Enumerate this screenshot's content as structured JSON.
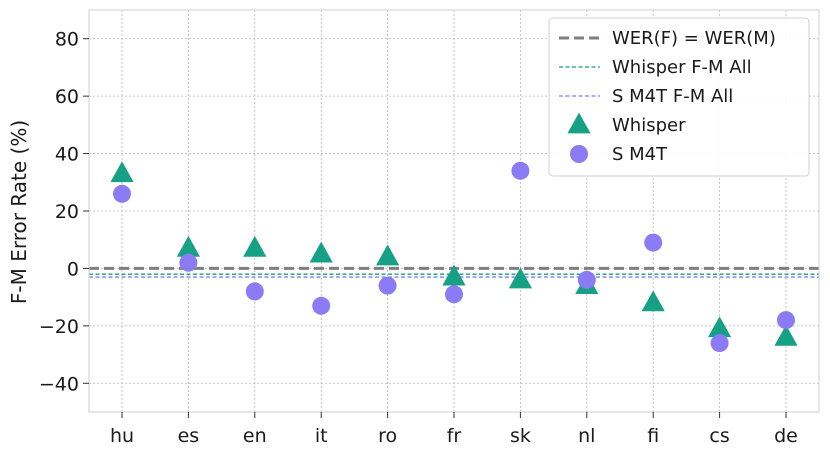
{
  "chart_data": {
    "type": "scatter",
    "categories": [
      "hu",
      "es",
      "en",
      "it",
      "ro",
      "fr",
      "sk",
      "nl",
      "fi",
      "cs",
      "de"
    ],
    "ylabel": "F-M Error Rate (%)",
    "ylim": [
      -50,
      90
    ],
    "yticks": [
      -40,
      -20,
      0,
      20,
      40,
      60,
      80
    ],
    "grid": true,
    "legend_position": "top-right",
    "series": [
      {
        "name": "Whisper",
        "marker": "triangle",
        "color": "#16a085",
        "values": [
          33,
          7,
          7,
          5,
          4,
          -3,
          -4,
          -6,
          -12,
          -21,
          -24
        ]
      },
      {
        "name": "S M4T",
        "marker": "circle",
        "color": "#8b7cf6",
        "values": [
          26,
          2,
          -8,
          -13,
          -6,
          -9,
          34,
          -4,
          9,
          -26,
          -18
        ]
      }
    ],
    "reference_lines": [
      {
        "name": "WER(F) = WER(M)",
        "y": 0,
        "color": "#7f7f7f",
        "style": "dashed-thick"
      },
      {
        "name": "Whisper F-M All",
        "y": -2,
        "color": "#16a085",
        "style": "dashed-thin"
      },
      {
        "name": "S M4T F-M All",
        "y": -3,
        "color": "#8b7cf6",
        "style": "dashed-thin"
      }
    ]
  }
}
